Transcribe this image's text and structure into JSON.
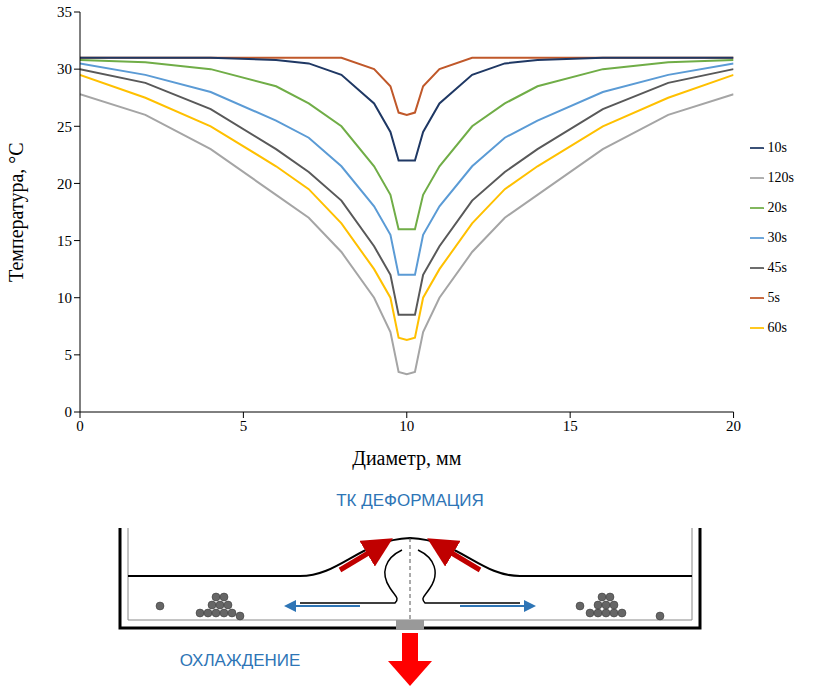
{
  "chart_data": {
    "type": "line",
    "x_label": "Диаметр, мм",
    "y_label": "Температура, °C",
    "x": [
      0,
      2,
      4,
      6,
      7,
      8,
      9,
      9.5,
      9.75,
      10,
      10.25,
      10.5,
      11,
      12,
      13,
      14,
      16,
      18,
      20
    ],
    "series": [
      {
        "name": "5s",
        "color": "#c0582a",
        "values": [
          31,
          31,
          31,
          31,
          31,
          31,
          30,
          28.5,
          26.2,
          26,
          26.2,
          28.5,
          30,
          31,
          31,
          31,
          31,
          31,
          31
        ]
      },
      {
        "name": "10s",
        "color": "#1f3864",
        "values": [
          31,
          31,
          31,
          30.8,
          30.5,
          29.5,
          27,
          24.5,
          22,
          22,
          22,
          24.5,
          27,
          29.5,
          30.5,
          30.8,
          31,
          31,
          31
        ]
      },
      {
        "name": "20s",
        "color": "#70ad47",
        "values": [
          30.8,
          30.6,
          30,
          28.5,
          27,
          25,
          21.5,
          19,
          16,
          16,
          16,
          19,
          21.5,
          25,
          27,
          28.5,
          30,
          30.6,
          30.8
        ]
      },
      {
        "name": "30s",
        "color": "#5b9bd5",
        "values": [
          30.5,
          29.5,
          28,
          25.5,
          24,
          21.5,
          18,
          15.5,
          12,
          12,
          12,
          15.5,
          18,
          21.5,
          24,
          25.5,
          28,
          29.5,
          30.5
        ]
      },
      {
        "name": "45s",
        "color": "#595959",
        "values": [
          30,
          28.8,
          26.5,
          23,
          21,
          18.5,
          14.5,
          12,
          8.5,
          8.5,
          8.5,
          12,
          14.5,
          18.5,
          21,
          23,
          26.5,
          28.8,
          30
        ]
      },
      {
        "name": "60s",
        "color": "#ffc000",
        "values": [
          29.5,
          27.5,
          25,
          21.5,
          19.5,
          16.5,
          12.5,
          10,
          6.5,
          6.3,
          6.5,
          10,
          12.5,
          16.5,
          19.5,
          21.5,
          25,
          27.5,
          29.5
        ]
      },
      {
        "name": "120s",
        "color": "#a5a5a5",
        "values": [
          27.8,
          26,
          23,
          19,
          17,
          14,
          10,
          7,
          3.5,
          3.3,
          3.5,
          7,
          10,
          14,
          17,
          19,
          23,
          26,
          27.8
        ]
      }
    ],
    "xlim": [
      0,
      20
    ],
    "xticks": [
      0,
      5,
      10,
      15,
      20
    ],
    "ylim": [
      0,
      35
    ],
    "yticks": [
      0,
      5,
      10,
      15,
      20,
      25,
      30,
      35
    ],
    "grid": false,
    "legend": "right"
  },
  "diagram": {
    "top_label": "ТК ДЕФОРМАЦИЯ",
    "bottom_label": "ОХЛАЖДЕНИЕ"
  }
}
